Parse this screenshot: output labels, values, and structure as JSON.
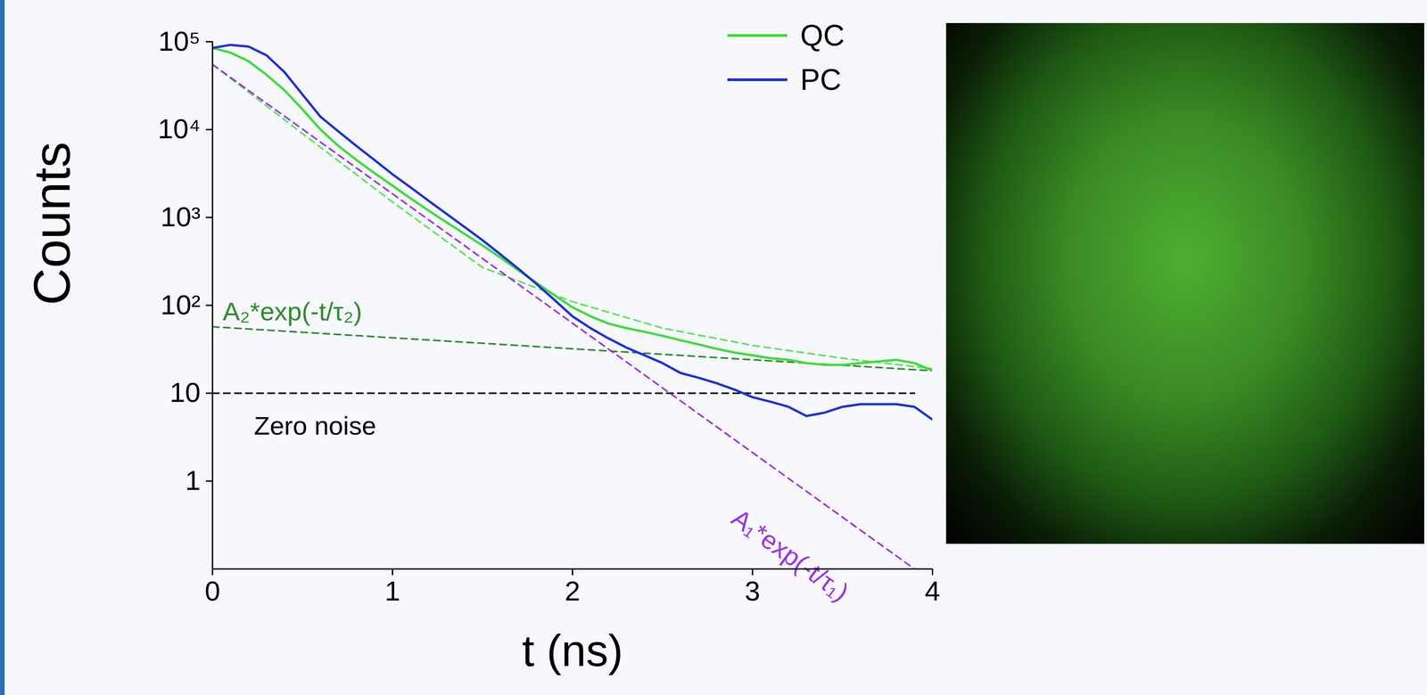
{
  "chart_data": {
    "type": "line",
    "x_label": "t (ns)",
    "y_label": "Counts",
    "log": "y",
    "grid": false,
    "legend": "top-right",
    "xlim": [
      0,
      4
    ],
    "xticks": [
      0,
      1,
      2,
      3,
      4
    ],
    "ylim": [
      0.1,
      100000
    ],
    "yticks": [
      1,
      10,
      {
        "value": 100,
        "label": "10²"
      },
      {
        "value": 1000,
        "label": "10³"
      },
      {
        "value": 10000,
        "label": "10⁴"
      },
      {
        "value": 100000,
        "label": "10⁵"
      }
    ],
    "x": [
      0,
      0.1,
      0.2,
      0.3,
      0.4,
      0.5,
      0.6,
      0.7,
      0.8,
      0.9,
      1.0,
      1.1,
      1.2,
      1.3,
      1.4,
      1.5,
      1.6,
      1.7,
      1.8,
      1.9,
      2.0,
      2.1,
      2.2,
      2.3,
      2.4,
      2.5,
      2.6,
      2.7,
      2.8,
      2.9,
      3.0,
      3.1,
      3.2,
      3.3,
      3.4,
      3.5,
      3.6,
      3.7,
      3.8,
      3.9,
      4.0
    ],
    "series": [
      {
        "name": "QC",
        "color": "#3ddc3d",
        "line_style": "solid",
        "values": [
          85000,
          75000,
          60000,
          42000,
          28000,
          17000,
          10000,
          6500,
          4500,
          3200,
          2300,
          1650,
          1200,
          880,
          650,
          480,
          350,
          250,
          180,
          130,
          95,
          75,
          62,
          55,
          50,
          45,
          40,
          36,
          32,
          29,
          27,
          25,
          24,
          22,
          21,
          21,
          22,
          23,
          24,
          22,
          18
        ]
      },
      {
        "name": "PC",
        "color": "#1f2fd6",
        "line_style": "solid",
        "values": [
          85000,
          92000,
          88000,
          70000,
          45000,
          25000,
          14000,
          9500,
          6500,
          4500,
          3100,
          2200,
          1550,
          1100,
          780,
          550,
          380,
          260,
          175,
          115,
          75,
          55,
          42,
          33,
          27,
          22,
          17,
          15,
          13,
          11,
          9,
          8,
          7,
          5.5,
          6,
          7,
          7.5,
          7.5,
          7.5,
          7,
          5
        ]
      }
    ],
    "reference_lines": [
      {
        "x": [
          0,
          0.5,
          1,
          1.5,
          2,
          2.5,
          3,
          3.5,
          4
        ],
        "values": [
          55000,
          9000,
          1500,
          270,
          110,
          55,
          35,
          25,
          19
        ],
        "color": "#55e655",
        "line_style": "dashed"
      },
      {
        "label": "A₂*exp(-t/τ₂)",
        "x": [
          0,
          4
        ],
        "values": [
          57,
          18
        ],
        "color": "#2e8b2e",
        "line_style": "dashed"
      },
      {
        "label": "Zero noise",
        "x": [
          0,
          3.9
        ],
        "values": [
          10,
          10
        ],
        "color": "#000000",
        "line_style": "dashed"
      },
      {
        "label": "A₁*exp(-t/τ₁)",
        "x": [
          0,
          3.9
        ],
        "values": [
          55000,
          0.1
        ],
        "color": "#9a32e6",
        "line_style": "dashed"
      }
    ]
  }
}
